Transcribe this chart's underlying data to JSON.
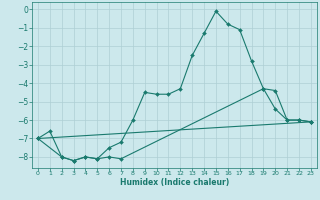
{
  "xlabel": "Humidex (Indice chaleur)",
  "background_color": "#cce8ec",
  "line_color": "#1a7a6e",
  "grid_color": "#aecfd4",
  "xlim": [
    -0.5,
    23.5
  ],
  "ylim": [
    -8.6,
    0.4
  ],
  "xticks": [
    0,
    1,
    2,
    3,
    4,
    5,
    6,
    7,
    8,
    9,
    10,
    11,
    12,
    13,
    14,
    15,
    16,
    17,
    18,
    19,
    20,
    21,
    22,
    23
  ],
  "yticks": [
    0,
    -1,
    -2,
    -3,
    -4,
    -5,
    -6,
    -7,
    -8
  ],
  "lines": [
    {
      "x": [
        0,
        1,
        2,
        3,
        4,
        5,
        6,
        7,
        8,
        9,
        10,
        11,
        12,
        13,
        14,
        15,
        16,
        17,
        18,
        19,
        20,
        21,
        22,
        23
      ],
      "y": [
        -7.0,
        -6.6,
        -8.0,
        -8.2,
        -8.0,
        -8.1,
        -7.5,
        -7.2,
        -6.0,
        -4.5,
        -4.6,
        -4.6,
        -4.3,
        -2.5,
        -1.3,
        -0.1,
        -0.8,
        -1.1,
        -2.8,
        -4.3,
        -5.4,
        -6.0,
        -6.0,
        -6.1
      ]
    },
    {
      "x": [
        0,
        2,
        3,
        4,
        5,
        6,
        7,
        19,
        20,
        21,
        22,
        23
      ],
      "y": [
        -7.0,
        -8.0,
        -8.2,
        -8.0,
        -8.1,
        -8.0,
        -8.1,
        -4.3,
        -4.4,
        -6.0,
        -6.0,
        -6.1
      ]
    },
    {
      "x": [
        0,
        23
      ],
      "y": [
        -7.0,
        -6.1
      ]
    }
  ]
}
